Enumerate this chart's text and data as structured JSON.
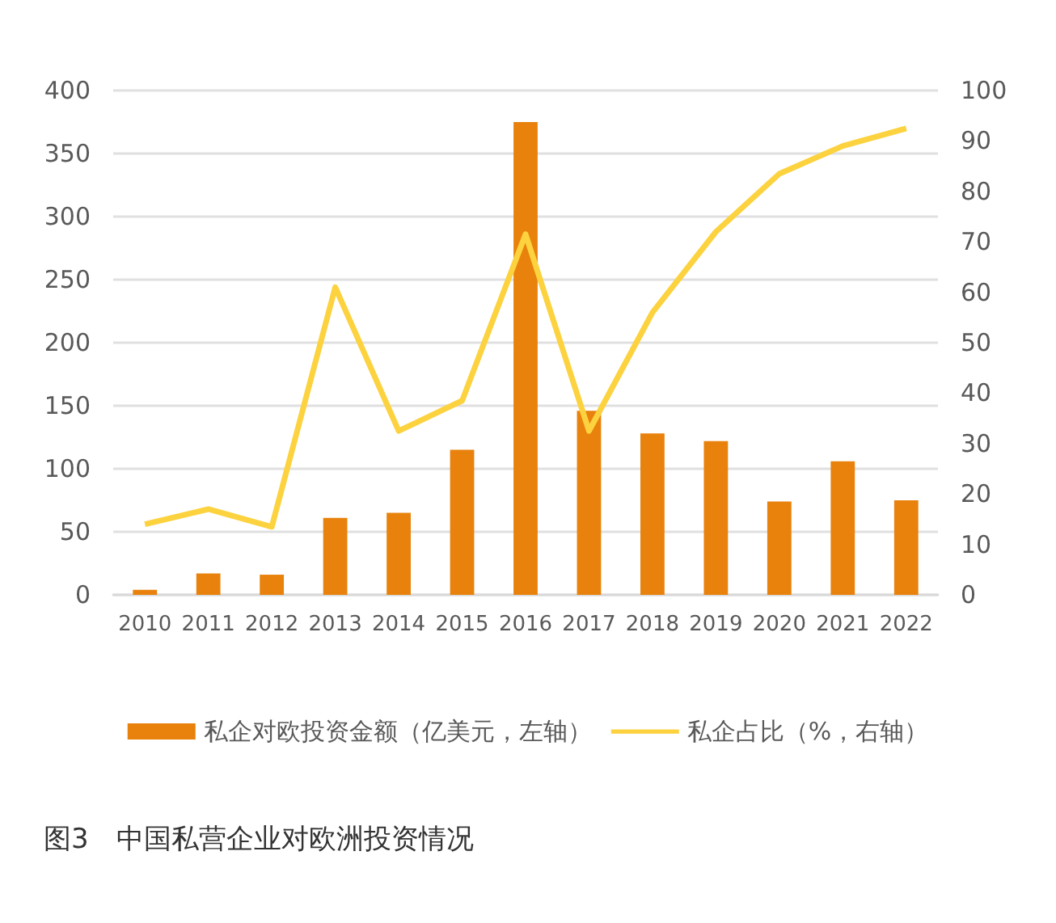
{
  "chart_data": {
    "type": "bar",
    "title": "图3　中国私营企业对欧洲投资情况",
    "categories": [
      "2010",
      "2011",
      "2012",
      "2013",
      "2014",
      "2015",
      "2016",
      "2017",
      "2018",
      "2019",
      "2020",
      "2021",
      "2022"
    ],
    "series": [
      {
        "name": "私企对欧投资金额（亿美元，左轴）",
        "color": "#e8820c",
        "values": [
          4,
          17,
          16,
          61,
          65,
          115,
          375,
          146,
          128,
          122,
          74,
          106,
          75
        ]
      },
      {
        "name": "私企占比（%，右轴）",
        "type": "line",
        "axis": "y2",
        "color": "#fcd23f",
        "values": [
          14,
          17,
          13.5,
          61,
          32.5,
          38.5,
          71.5,
          32.5,
          56,
          72,
          83.5,
          89,
          92.5
        ]
      }
    ],
    "ylim": [
      0,
      400
    ],
    "yticks": [
      0,
      50,
      100,
      150,
      200,
      250,
      300,
      350,
      400
    ],
    "y2lim": [
      0,
      100
    ],
    "y2ticks": [
      0,
      10,
      20,
      30,
      40,
      50,
      60,
      70,
      80,
      90,
      100
    ],
    "grid": "y",
    "legend": "bottom",
    "marker": "none"
  }
}
